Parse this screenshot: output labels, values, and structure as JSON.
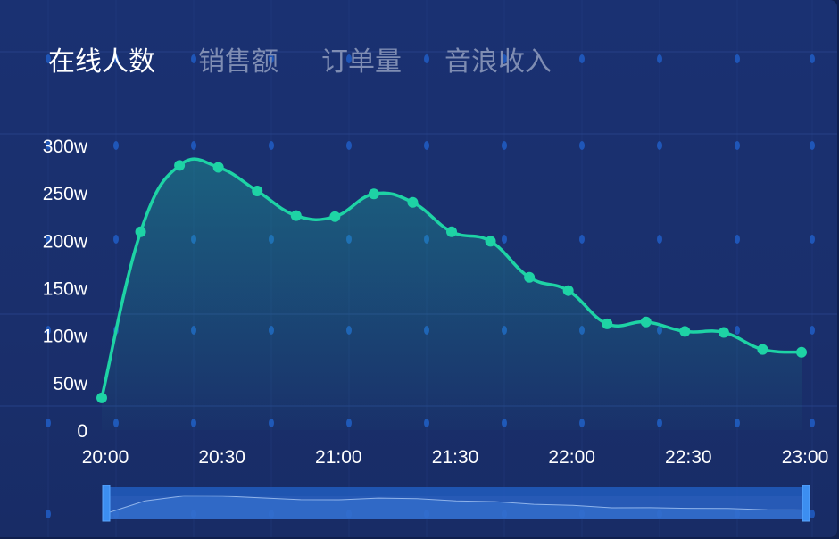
{
  "tabs": [
    {
      "label": "在线人数",
      "active": true
    },
    {
      "label": "销售额",
      "active": false
    },
    {
      "label": "订单量",
      "active": false
    },
    {
      "label": "音浪收入",
      "active": false
    }
  ],
  "colors": {
    "line": "#1ed3a5",
    "background": "#1a3172",
    "slider": "#2f6fd0"
  },
  "chart_data": {
    "type": "line",
    "smooth": true,
    "area_fill": true,
    "x": [
      "20:00",
      "20:10",
      "20:20",
      "20:30",
      "20:40",
      "20:50",
      "21:00",
      "21:10",
      "21:20",
      "21:30",
      "21:40",
      "21:50",
      "22:00",
      "22:10",
      "22:20",
      "22:30",
      "22:40",
      "22:50",
      "23:00"
    ],
    "values": [
      34,
      209,
      279,
      277,
      252,
      226,
      225,
      249,
      240,
      209,
      199,
      161,
      147,
      112,
      114,
      104,
      103,
      85,
      82
    ],
    "x_tick_labels": [
      "20:00",
      "20:30",
      "21:00",
      "21:30",
      "22:00",
      "22:30",
      "23:00"
    ],
    "y_tick_labels": [
      "0",
      "50w",
      "100w",
      "150w",
      "200w",
      "250w",
      "300w"
    ],
    "y_tick_values": [
      0,
      50,
      100,
      150,
      200,
      250,
      300
    ],
    "ylim": [
      0,
      300
    ],
    "unit": "w",
    "data_zoom": {
      "start_percent": 0,
      "end_percent": 100
    }
  }
}
